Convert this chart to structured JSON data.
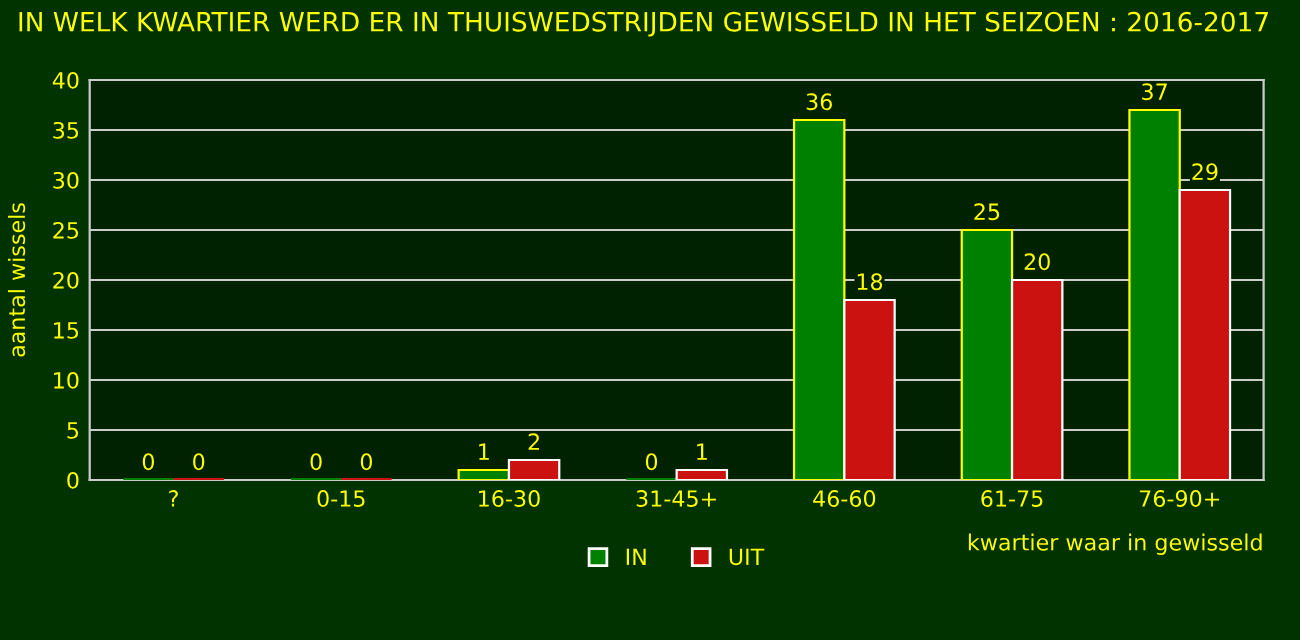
{
  "chart_data": {
    "type": "bar",
    "title": "IN WELK KWARTIER WERD ER IN THUISWEDSTRIJDEN GEWISSELD IN HET SEIZOEN : 2016-2017",
    "xlabel": "kwartier waar in gewisseld",
    "ylabel": "aantal wissels",
    "categories": [
      "?",
      "0-15",
      "16-30",
      "31-45+",
      "46-60",
      "61-75",
      "76-90+"
    ],
    "series": [
      {
        "name": "IN",
        "color": "#008000",
        "values": [
          0,
          0,
          1,
          0,
          36,
          25,
          37
        ]
      },
      {
        "name": "UIT",
        "color": "#cc1111",
        "values": [
          0,
          0,
          2,
          1,
          18,
          20,
          29
        ]
      }
    ],
    "ylim": [
      0,
      40
    ],
    "yticks": [
      0,
      5,
      10,
      15,
      20,
      25,
      30,
      35,
      40
    ],
    "grid": "y",
    "legend": "bottom",
    "data_labels": true
  }
}
